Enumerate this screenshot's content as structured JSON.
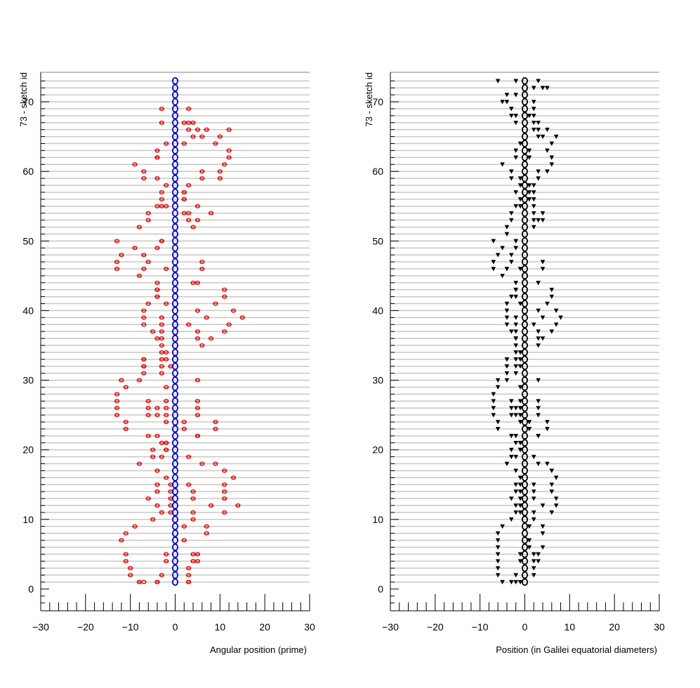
{
  "chart_data": [
    {
      "type": "scatter",
      "ylabel": "73 - sketch id",
      "xlabel": "Angular position (prime)",
      "xlim": [
        -30,
        30
      ],
      "ylim": [
        -3,
        74
      ],
      "x_ticks": [
        -30,
        -20,
        -10,
        0,
        10,
        20,
        30
      ],
      "y_ticks": [
        0,
        10,
        20,
        30,
        40,
        50,
        60,
        70
      ],
      "grid": "horizontal lines at every sketch id",
      "center_points": {
        "x": 0,
        "y_from": 1,
        "y_to": 73,
        "color": "#0000cc",
        "marker": "circle"
      },
      "points_color": "#dd0000",
      "points": [
        {
          "y": 73,
          "x": []
        },
        {
          "y": 72,
          "x": []
        },
        {
          "y": 71,
          "x": []
        },
        {
          "y": 70,
          "x": []
        },
        {
          "y": 69,
          "x": [
            -3,
            3
          ]
        },
        {
          "y": 68,
          "x": []
        },
        {
          "y": 67,
          "x": [
            -3,
            2,
            3,
            4
          ]
        },
        {
          "y": 66,
          "x": [
            3,
            5,
            7,
            12
          ]
        },
        {
          "y": 65,
          "x": [
            4,
            6,
            10
          ]
        },
        {
          "y": 64,
          "x": [
            -2,
            2,
            9
          ]
        },
        {
          "y": 63,
          "x": [
            -4,
            12
          ]
        },
        {
          "y": 62,
          "x": [
            -4,
            -4,
            12
          ]
        },
        {
          "y": 61,
          "x": [
            -9,
            11
          ]
        },
        {
          "y": 60,
          "x": [
            -7,
            6,
            10
          ]
        },
        {
          "y": 59,
          "x": [
            -7,
            -4,
            6,
            10
          ]
        },
        {
          "y": 58,
          "x": [
            -2,
            3
          ]
        },
        {
          "y": 57,
          "x": [
            -3,
            2,
            2
          ]
        },
        {
          "y": 56,
          "x": [
            -3,
            2,
            2
          ]
        },
        {
          "y": 55,
          "x": [
            -4,
            -3,
            -2,
            5
          ]
        },
        {
          "y": 54,
          "x": [
            -6,
            2,
            3,
            8
          ]
        },
        {
          "y": 53,
          "x": [
            -6,
            3,
            5
          ]
        },
        {
          "y": 52,
          "x": [
            -8,
            4
          ]
        },
        {
          "y": 51,
          "x": []
        },
        {
          "y": 50,
          "x": [
            -13,
            -3,
            -3
          ]
        },
        {
          "y": 49,
          "x": [
            -9,
            -4
          ]
        },
        {
          "y": 48,
          "x": [
            -12,
            -7
          ]
        },
        {
          "y": 47,
          "x": [
            -13,
            -6,
            6
          ]
        },
        {
          "y": 46,
          "x": [
            -13,
            -7,
            -2,
            6
          ]
        },
        {
          "y": 45,
          "x": [
            -8
          ]
        },
        {
          "y": 44,
          "x": [
            -4,
            4,
            5
          ]
        },
        {
          "y": 43,
          "x": [
            -4,
            -4,
            11
          ]
        },
        {
          "y": 42,
          "x": [
            -4,
            -4,
            11
          ]
        },
        {
          "y": 41,
          "x": [
            -6,
            -2,
            9
          ]
        },
        {
          "y": 40,
          "x": [
            -7,
            5,
            13
          ]
        },
        {
          "y": 39,
          "x": [
            -7,
            -3,
            7,
            15
          ]
        },
        {
          "y": 38,
          "x": [
            -7,
            -3,
            3,
            12
          ]
        },
        {
          "y": 37,
          "x": [
            -5,
            -3,
            5,
            11
          ]
        },
        {
          "y": 36,
          "x": [
            -4,
            -3,
            5,
            8
          ]
        },
        {
          "y": 35,
          "x": [
            -3,
            6
          ]
        },
        {
          "y": 34,
          "x": [
            -3,
            -2
          ]
        },
        {
          "y": 33,
          "x": [
            -7,
            -7,
            -3,
            -2
          ]
        },
        {
          "y": 32,
          "x": [
            -7,
            -7,
            -3,
            -1
          ]
        },
        {
          "y": 31,
          "x": [
            -7,
            -3
          ]
        },
        {
          "y": 30,
          "x": [
            -12,
            -8,
            5
          ]
        },
        {
          "y": 29,
          "x": [
            -11,
            -2
          ]
        },
        {
          "y": 28,
          "x": [
            -13
          ]
        },
        {
          "y": 27,
          "x": [
            -13,
            -6,
            -2,
            5
          ]
        },
        {
          "y": 26,
          "x": [
            -13,
            -6,
            -4,
            -2,
            5
          ]
        },
        {
          "y": 25,
          "x": [
            -13,
            -6,
            -4,
            -2,
            5
          ]
        },
        {
          "y": 24,
          "x": [
            -11,
            -2,
            2,
            9
          ]
        },
        {
          "y": 23,
          "x": [
            -11,
            2,
            9
          ]
        },
        {
          "y": 22,
          "x": [
            -6,
            -4,
            5,
            5
          ]
        },
        {
          "y": 21,
          "x": [
            -3,
            -2,
            -2
          ]
        },
        {
          "y": 20,
          "x": [
            -5,
            -2,
            -2
          ]
        },
        {
          "y": 19,
          "x": [
            -5,
            -3,
            3
          ]
        },
        {
          "y": 18,
          "x": [
            -8,
            6,
            9
          ]
        },
        {
          "y": 17,
          "x": [
            -4,
            11
          ]
        },
        {
          "y": 16,
          "x": [
            -2,
            13
          ]
        },
        {
          "y": 15,
          "x": [
            -4,
            -1,
            3,
            11
          ]
        },
        {
          "y": 14,
          "x": [
            -4,
            -1,
            4,
            11
          ]
        },
        {
          "y": 13,
          "x": [
            -6,
            -1,
            4,
            11
          ]
        },
        {
          "y": 12,
          "x": [
            -4,
            -1,
            8,
            14
          ]
        },
        {
          "y": 11,
          "x": [
            -3,
            -1,
            4,
            11
          ]
        },
        {
          "y": 10,
          "x": [
            -5,
            4
          ]
        },
        {
          "y": 9,
          "x": [
            -9,
            2,
            7
          ]
        },
        {
          "y": 8,
          "x": [
            -11,
            7
          ]
        },
        {
          "y": 7,
          "x": [
            -12,
            2
          ]
        },
        {
          "y": 6,
          "x": []
        },
        {
          "y": 5,
          "x": [
            -11,
            -2,
            4,
            5
          ]
        },
        {
          "y": 4,
          "x": [
            -11,
            -2,
            4,
            5
          ]
        },
        {
          "y": 3,
          "x": [
            -10,
            3
          ]
        },
        {
          "y": 2,
          "x": [
            -10,
            -3,
            3
          ]
        },
        {
          "y": 1,
          "x": [
            -8,
            -4,
            -4,
            3
          ]
        },
        {
          "y": 0,
          "x": []
        }
      ],
      "extra_points": [
        {
          "y": 1,
          "x": [
            -8,
            -7,
            3
          ]
        }
      ]
    },
    {
      "type": "scatter",
      "ylabel": "73 - sketch id",
      "xlabel": "Position (in Galilei equatorial diameters)",
      "xlim": [
        -30,
        30
      ],
      "ylim": [
        -3,
        74
      ],
      "x_ticks": [
        -30,
        -20,
        -10,
        0,
        10,
        20,
        30
      ],
      "y_ticks": [
        0,
        10,
        20,
        30,
        40,
        50,
        60,
        70
      ],
      "grid": "horizontal lines at every sketch id",
      "center_points": {
        "x": 0,
        "y_from": 1,
        "y_to": 73,
        "color": "#000000",
        "marker": "circle"
      },
      "points_color": "#000000",
      "points": [
        {
          "y": 73,
          "x": [
            -6,
            -2,
            3
          ]
        },
        {
          "y": 72,
          "x": [
            2,
            4,
            5
          ]
        },
        {
          "y": 71,
          "x": [
            -4,
            -2
          ]
        },
        {
          "y": 70,
          "x": [
            -5,
            -4,
            2
          ]
        },
        {
          "y": 69,
          "x": [
            -3,
            2
          ]
        },
        {
          "y": 68,
          "x": [
            -3,
            -2,
            1,
            2
          ]
        },
        {
          "y": 67,
          "x": [
            -2,
            2,
            3
          ]
        },
        {
          "y": 66,
          "x": [
            2,
            3,
            5
          ]
        },
        {
          "y": 65,
          "x": [
            3,
            4,
            7
          ]
        },
        {
          "y": 64,
          "x": [
            -1,
            6
          ]
        },
        {
          "y": 63,
          "x": [
            -2,
            1,
            5
          ]
        },
        {
          "y": 62,
          "x": [
            -2,
            1,
            6
          ]
        },
        {
          "y": 61,
          "x": [
            -5,
            6
          ]
        },
        {
          "y": 60,
          "x": [
            -3,
            3,
            5
          ]
        },
        {
          "y": 59,
          "x": [
            -3,
            -1,
            3
          ]
        },
        {
          "y": 58,
          "x": [
            -1,
            1,
            2
          ]
        },
        {
          "y": 57,
          "x": [
            -2,
            1,
            2
          ]
        },
        {
          "y": 56,
          "x": [
            -1,
            1,
            2
          ]
        },
        {
          "y": 55,
          "x": [
            -2,
            -1,
            2
          ]
        },
        {
          "y": 54,
          "x": [
            -3,
            2,
            4
          ]
        },
        {
          "y": 53,
          "x": [
            -3,
            2,
            3,
            4
          ]
        },
        {
          "y": 52,
          "x": [
            -4,
            2
          ]
        },
        {
          "y": 51,
          "x": [
            -4
          ]
        },
        {
          "y": 50,
          "x": [
            -7,
            -2,
            -2
          ]
        },
        {
          "y": 49,
          "x": [
            -5,
            -2
          ]
        },
        {
          "y": 48,
          "x": [
            -6,
            -3
          ]
        },
        {
          "y": 47,
          "x": [
            -7,
            -3,
            4
          ]
        },
        {
          "y": 46,
          "x": [
            -7,
            -4,
            -1,
            4
          ]
        },
        {
          "y": 45,
          "x": [
            -5
          ]
        },
        {
          "y": 44,
          "x": [
            -2,
            3,
            3
          ]
        },
        {
          "y": 43,
          "x": [
            -2,
            -2,
            6
          ]
        },
        {
          "y": 42,
          "x": [
            -3,
            -2,
            6
          ]
        },
        {
          "y": 41,
          "x": [
            -4,
            -1,
            5
          ]
        },
        {
          "y": 40,
          "x": [
            -4,
            3,
            7
          ]
        },
        {
          "y": 39,
          "x": [
            -4,
            -2,
            4,
            8
          ]
        },
        {
          "y": 38,
          "x": [
            -4,
            -2,
            2,
            7
          ]
        },
        {
          "y": 37,
          "x": [
            -3,
            -2,
            3,
            6
          ]
        },
        {
          "y": 36,
          "x": [
            -2,
            -2,
            3,
            4
          ]
        },
        {
          "y": 35,
          "x": [
            -2,
            3
          ]
        },
        {
          "y": 34,
          "x": [
            -2,
            -1
          ]
        },
        {
          "y": 33,
          "x": [
            -4,
            -4,
            -2,
            -1
          ]
        },
        {
          "y": 32,
          "x": [
            -4,
            -4,
            -2,
            -1
          ]
        },
        {
          "y": 31,
          "x": [
            -4,
            -2
          ]
        },
        {
          "y": 30,
          "x": [
            -6,
            -4,
            3
          ]
        },
        {
          "y": 29,
          "x": [
            -6,
            -1
          ]
        },
        {
          "y": 28,
          "x": [
            -7
          ]
        },
        {
          "y": 27,
          "x": [
            -7,
            -3,
            -1,
            3
          ]
        },
        {
          "y": 26,
          "x": [
            -7,
            -3,
            -2,
            -1,
            3
          ]
        },
        {
          "y": 25,
          "x": [
            -7,
            -3,
            -2,
            -1,
            3
          ]
        },
        {
          "y": 24,
          "x": [
            -6,
            -1,
            1,
            5
          ]
        },
        {
          "y": 23,
          "x": [
            -6,
            1,
            5
          ]
        },
        {
          "y": 22,
          "x": [
            -3,
            -2,
            3,
            3
          ]
        },
        {
          "y": 21,
          "x": [
            -2,
            -1,
            -1
          ]
        },
        {
          "y": 20,
          "x": [
            -3,
            -1,
            -1
          ]
        },
        {
          "y": 19,
          "x": [
            -3,
            -2,
            2
          ]
        },
        {
          "y": 18,
          "x": [
            -4,
            3,
            5
          ]
        },
        {
          "y": 17,
          "x": [
            -2,
            6
          ]
        },
        {
          "y": 16,
          "x": [
            -1,
            7
          ]
        },
        {
          "y": 15,
          "x": [
            -2,
            -1,
            2,
            6
          ]
        },
        {
          "y": 14,
          "x": [
            -2,
            -1,
            2,
            6
          ]
        },
        {
          "y": 13,
          "x": [
            -3,
            -1,
            2,
            7
          ]
        },
        {
          "y": 12,
          "x": [
            -2,
            -1,
            4,
            7
          ]
        },
        {
          "y": 11,
          "x": [
            -2,
            -1,
            2,
            6
          ]
        },
        {
          "y": 10,
          "x": [
            -3,
            2
          ]
        },
        {
          "y": 9,
          "x": [
            -5,
            1,
            4
          ]
        },
        {
          "y": 8,
          "x": [
            -6,
            4
          ]
        },
        {
          "y": 7,
          "x": [
            -6,
            1
          ]
        },
        {
          "y": 6,
          "x": [
            -6,
            1,
            4
          ]
        },
        {
          "y": 5,
          "x": [
            -6,
            -1,
            2,
            3
          ]
        },
        {
          "y": 4,
          "x": [
            -6,
            -1,
            2,
            3
          ]
        },
        {
          "y": 3,
          "x": [
            -6,
            2
          ]
        },
        {
          "y": 2,
          "x": [
            -6,
            -2,
            2
          ]
        },
        {
          "y": 1,
          "x": [
            -5,
            -3,
            -2,
            -1
          ]
        },
        {
          "y": 0,
          "x": []
        }
      ],
      "extra_points": []
    }
  ]
}
